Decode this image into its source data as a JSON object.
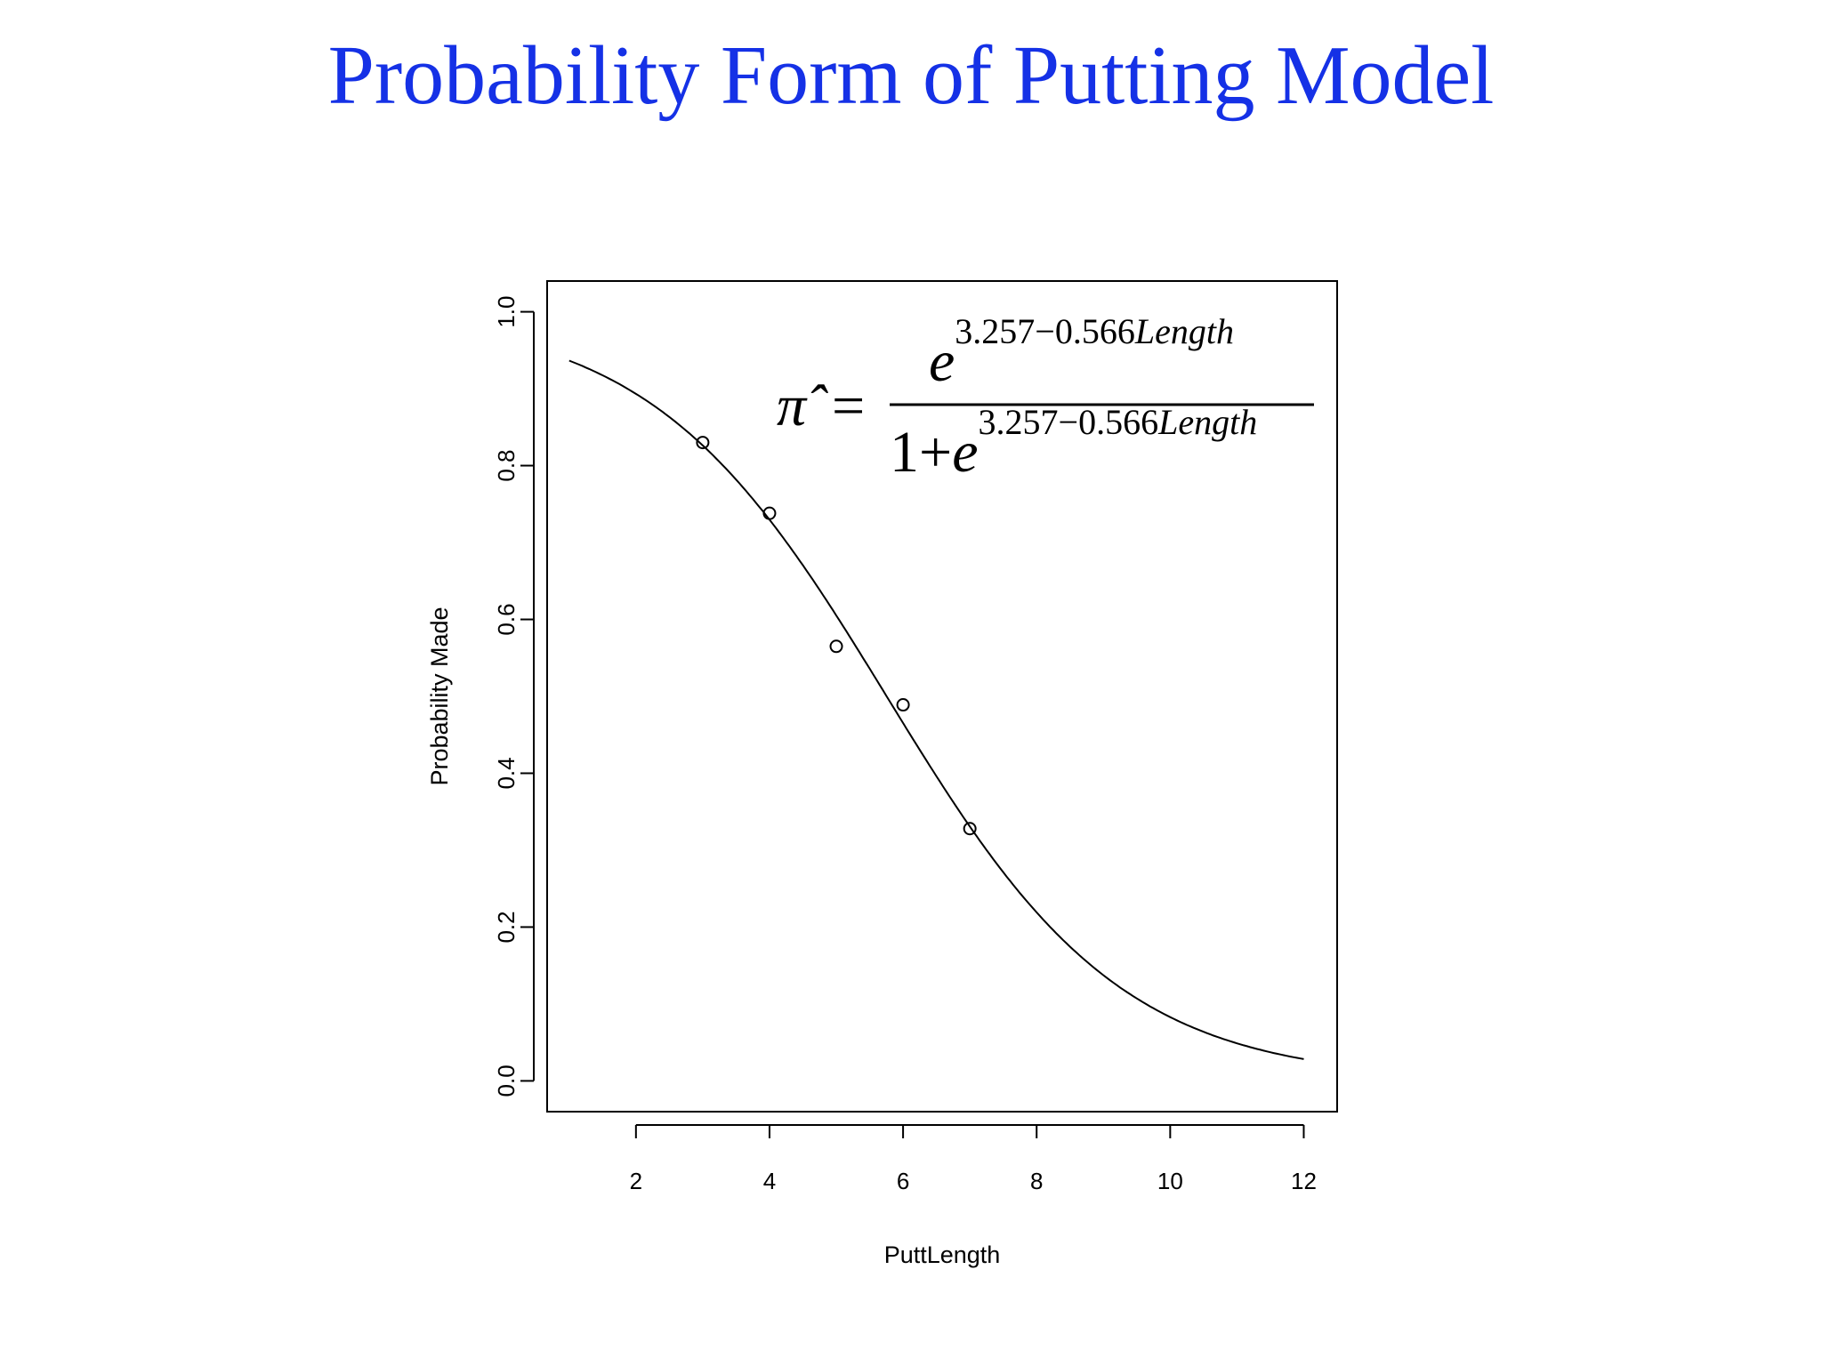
{
  "slide": {
    "title": "Probability Form of Putting Model"
  },
  "chart_data": {
    "type": "scatter",
    "title": "",
    "xlabel": "PuttLength",
    "ylabel": "Probability Made",
    "xlim": [
      0.67,
      12.5
    ],
    "ylim": [
      -0.04,
      1.04
    ],
    "x_ticks": [
      2,
      4,
      6,
      8,
      10,
      12
    ],
    "y_ticks": [
      0.0,
      0.2,
      0.4,
      0.6,
      0.8,
      1.0
    ],
    "x_tick_labels": [
      "2",
      "4",
      "6",
      "8",
      "10",
      "12"
    ],
    "y_tick_labels": [
      "0.0",
      "0.2",
      "0.4",
      "0.6",
      "0.8",
      "1.0"
    ],
    "grid": false,
    "legend": "none",
    "series": [
      {
        "kind": "points",
        "marker": "o",
        "x": [
          3,
          4,
          5,
          6,
          7
        ],
        "y": [
          0.83,
          0.738,
          0.565,
          0.489,
          0.328
        ]
      },
      {
        "kind": "fitted-curve",
        "model": "logistic",
        "intercept": 3.257,
        "slope": -0.566,
        "x_range": [
          1,
          12
        ]
      }
    ],
    "annotation": {
      "lhs": "π̂",
      "equals": "=",
      "numerator_base": "e",
      "numerator_exponent": "3.257−0.566",
      "denominator_prefix": "1+",
      "denominator_base": "e",
      "denominator_exponent": "3.257−0.566",
      "exponent_variable": "Length"
    }
  }
}
